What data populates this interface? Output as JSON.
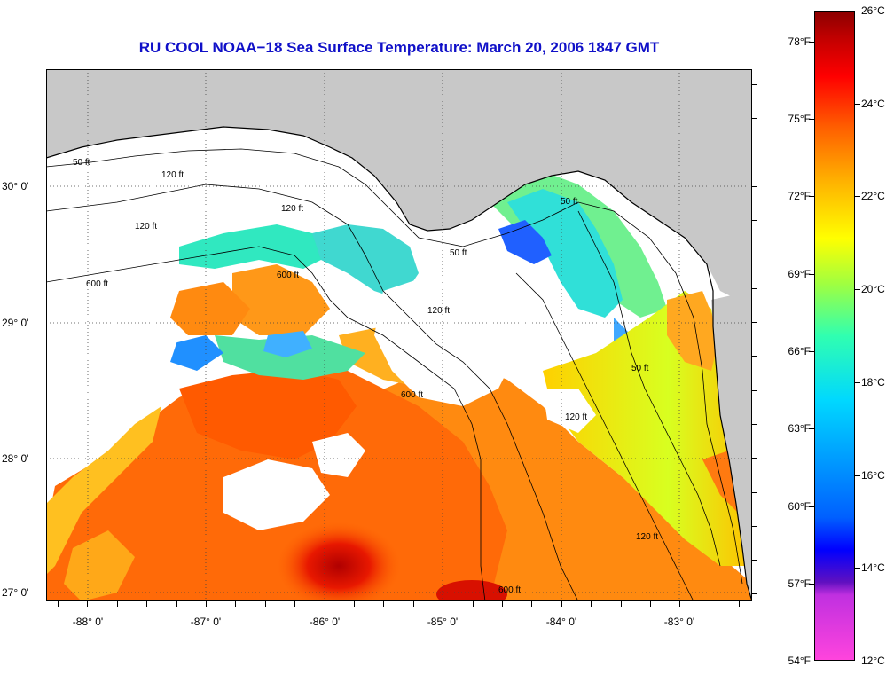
{
  "title": "RU COOL  NOAA−18  Sea Surface Temperature:  March 20, 2006 1847 GMT",
  "map": {
    "longitude_labels": [
      "-88° 0'",
      "-87° 0'",
      "-86° 0'",
      "-85° 0'",
      "-84° 0'",
      "-83° 0'"
    ],
    "latitude_labels": [
      "30° 0'",
      "29° 0'",
      "28° 0'",
      "27° 0'"
    ],
    "longitude_values": [
      -88,
      -87,
      -86,
      -85,
      -84,
      -83
    ],
    "latitude_values": [
      30,
      29,
      28,
      27
    ],
    "grid": "dotted",
    "land_color": "#c8c8c8",
    "no_data_color": "#ffffff",
    "isobath_labels": [
      "50 ft",
      "120 ft",
      "600 ft",
      "50 ft",
      "120 ft",
      "600 ft",
      "120 ft",
      "50 ft",
      "600 ft",
      "120 ft",
      "50 ft",
      "120 ft",
      "600 ft",
      "120 ft"
    ]
  },
  "colorbar": {
    "fahrenheit_labels": [
      "78°F",
      "75°F",
      "72°F",
      "69°F",
      "66°F",
      "63°F",
      "60°F",
      "57°F",
      "54°F"
    ],
    "celsius_labels": [
      "26°C",
      "24°C",
      "22°C",
      "20°C",
      "18°C",
      "16°C",
      "14°C",
      "12°C"
    ],
    "range_celsius": [
      12,
      26
    ],
    "colors": {
      "min": "#ff44dd",
      "cold": "#0000ff",
      "cool": "#00d8ff",
      "mid": "#ffff00",
      "warm": "#ff6000",
      "max": "#8b0000"
    }
  }
}
